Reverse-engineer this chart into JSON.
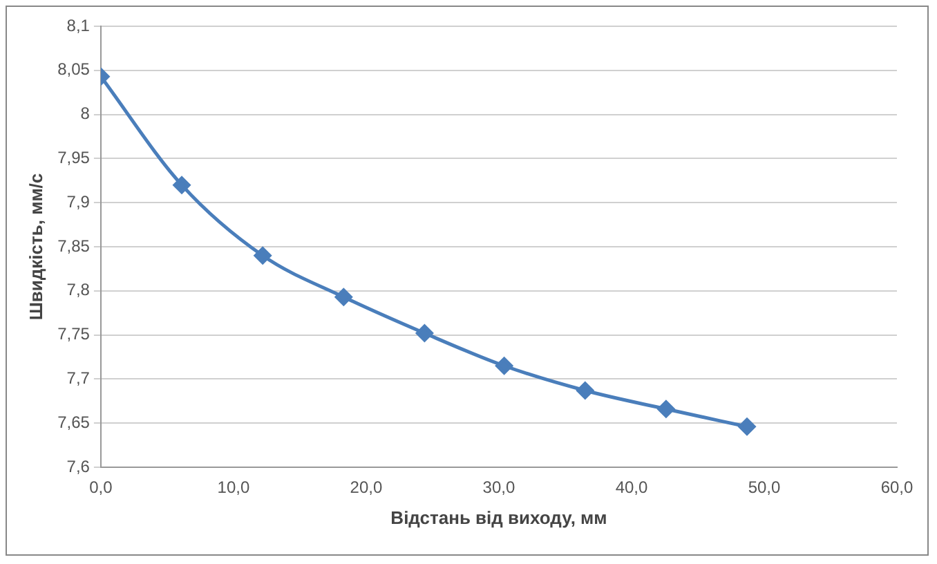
{
  "chart_data": {
    "type": "line",
    "xlabel": "Відстань від виходу, мм",
    "ylabel": "Швидкість, мм/с",
    "series": [
      {
        "color": "#4a7ebb",
        "x": [
          0,
          6.1,
          12.2,
          18.3,
          24.4,
          30.4,
          36.5,
          42.6,
          48.7
        ],
        "values": [
          8.043,
          7.92,
          7.84,
          7.793,
          7.752,
          7.715,
          7.687,
          7.666,
          7.646
        ]
      }
    ],
    "xlim": [
      0,
      60
    ],
    "xticks": [
      {
        "value": 0,
        "label": "0,0"
      },
      {
        "value": 10,
        "label": "10,0"
      },
      {
        "value": 20,
        "label": "20,0"
      },
      {
        "value": 30,
        "label": "30,0"
      },
      {
        "value": 40,
        "label": "40,0"
      },
      {
        "value": 50,
        "label": "50,0"
      },
      {
        "value": 60,
        "label": "60,0"
      }
    ],
    "ylim": [
      7.6,
      8.1
    ],
    "yticks": [
      {
        "value": 7.6,
        "label": "7,6"
      },
      {
        "value": 7.65,
        "label": "7,65"
      },
      {
        "value": 7.7,
        "label": "7,7"
      },
      {
        "value": 7.75,
        "label": "7,75"
      },
      {
        "value": 7.8,
        "label": "7,8"
      },
      {
        "value": 7.85,
        "label": "7,85"
      },
      {
        "value": 7.9,
        "label": "7,9"
      },
      {
        "value": 7.95,
        "label": "7,95"
      },
      {
        "value": 8,
        "label": "8"
      },
      {
        "value": 8.05,
        "label": "8,05"
      },
      {
        "value": 8.1,
        "label": "8,1"
      }
    ],
    "grid": "y",
    "marker": "diamond",
    "line_style": "solid"
  }
}
